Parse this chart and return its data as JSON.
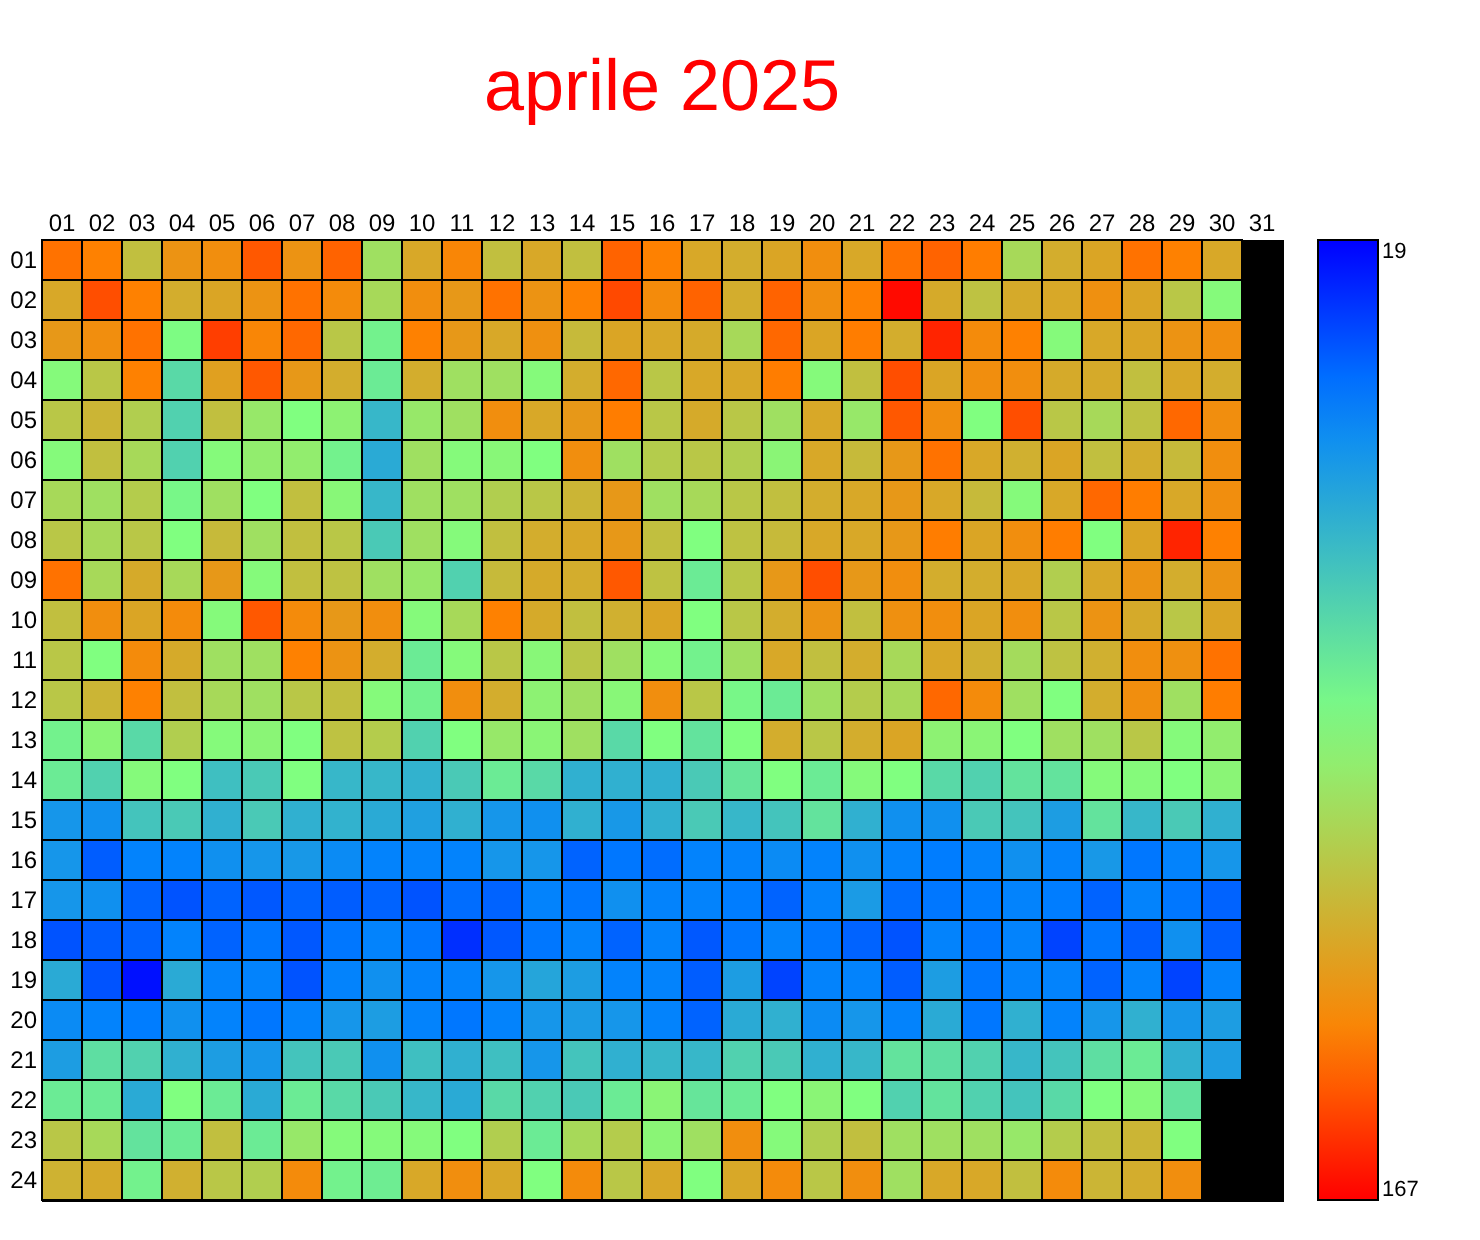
{
  "chart_data": {
    "type": "heatmap",
    "title": "aprile 2025",
    "categories": [
      "01",
      "02",
      "03",
      "04",
      "05",
      "06",
      "07",
      "08",
      "09",
      "10",
      "11",
      "12",
      "13",
      "14",
      "15",
      "16",
      "17",
      "18",
      "19",
      "20",
      "21",
      "22",
      "23",
      "24",
      "25",
      "26",
      "27",
      "28",
      "29",
      "30",
      "31"
    ],
    "y_categories": [
      "01",
      "02",
      "03",
      "04",
      "05",
      "06",
      "07",
      "08",
      "09",
      "10",
      "11",
      "12",
      "13",
      "14",
      "15",
      "16",
      "17",
      "18",
      "19",
      "20",
      "21",
      "22",
      "23",
      "24"
    ],
    "cells": [
      [
        145,
        142,
        118,
        135,
        137,
        150,
        135,
        148,
        105,
        127,
        140,
        118,
        127,
        118,
        148,
        142,
        127,
        125,
        128,
        137,
        127,
        145,
        148,
        143,
        108,
        125,
        128,
        145,
        142,
        127,
        null
      ],
      [
        127,
        152,
        142,
        125,
        128,
        135,
        145,
        138,
        108,
        137,
        133,
        145,
        135,
        142,
        153,
        138,
        148,
        125,
        148,
        137,
        142,
        165,
        126,
        117,
        126,
        127,
        136,
        128,
        115,
        95,
        null
      ],
      [
        133,
        137,
        145,
        92,
        155,
        140,
        147,
        115,
        88,
        142,
        133,
        127,
        136,
        120,
        128,
        127,
        126,
        108,
        147,
        128,
        143,
        125,
        160,
        138,
        142,
        95,
        127,
        128,
        135,
        137,
        null
      ],
      [
        95,
        115,
        142,
        78,
        130,
        150,
        133,
        125,
        85,
        125,
        105,
        105,
        95,
        125,
        147,
        115,
        127,
        127,
        143,
        95,
        118,
        152,
        128,
        137,
        137,
        126,
        126,
        118,
        127,
        125,
        null
      ],
      [
        115,
        122,
        112,
        75,
        118,
        102,
        93,
        98,
        65,
        102,
        105,
        137,
        127,
        133,
        143,
        115,
        126,
        115,
        105,
        127,
        102,
        150,
        137,
        93,
        152,
        115,
        108,
        117,
        147,
        137,
        null
      ],
      [
        95,
        118,
        108,
        75,
        95,
        100,
        100,
        88,
        60,
        105,
        95,
        96,
        93,
        137,
        105,
        113,
        115,
        112,
        97,
        127,
        120,
        133,
        145,
        127,
        124,
        128,
        118,
        125,
        120,
        137,
        null
      ],
      [
        108,
        105,
        113,
        90,
        105,
        93,
        118,
        96,
        65,
        105,
        105,
        112,
        115,
        122,
        133,
        105,
        108,
        115,
        118,
        125,
        127,
        133,
        127,
        120,
        95,
        127,
        147,
        143,
        127,
        137,
        null
      ],
      [
        115,
        108,
        115,
        93,
        120,
        105,
        118,
        115,
        72,
        105,
        95,
        118,
        125,
        127,
        133,
        118,
        93,
        117,
        120,
        127,
        127,
        133,
        143,
        128,
        137,
        143,
        93,
        128,
        160,
        142,
        null
      ],
      [
        145,
        108,
        126,
        108,
        133,
        95,
        118,
        117,
        105,
        102,
        75,
        120,
        126,
        125,
        150,
        117,
        85,
        115,
        133,
        152,
        133,
        137,
        125,
        125,
        127,
        112,
        127,
        135,
        125,
        135,
        null
      ],
      [
        118,
        137,
        128,
        138,
        95,
        150,
        138,
        133,
        137,
        95,
        108,
        142,
        126,
        118,
        124,
        128,
        93,
        115,
        125,
        135,
        118,
        136,
        137,
        128,
        137,
        115,
        135,
        126,
        115,
        128,
        null
      ],
      [
        115,
        93,
        138,
        126,
        105,
        105,
        142,
        135,
        125,
        85,
        95,
        115,
        96,
        115,
        105,
        95,
        88,
        105,
        127,
        118,
        125,
        108,
        127,
        124,
        107,
        117,
        124,
        137,
        136,
        145,
        null
      ],
      [
        115,
        122,
        142,
        118,
        108,
        105,
        115,
        118,
        95,
        88,
        137,
        125,
        98,
        105,
        96,
        137,
        115,
        90,
        85,
        105,
        113,
        108,
        147,
        138,
        105,
        93,
        125,
        137,
        105,
        143,
        null
      ],
      [
        88,
        97,
        78,
        112,
        95,
        97,
        93,
        117,
        113,
        75,
        93,
        102,
        97,
        105,
        78,
        93,
        82,
        93,
        125,
        115,
        125,
        128,
        98,
        97,
        93,
        105,
        105,
        115,
        95,
        100,
        null
      ],
      [
        85,
        75,
        95,
        93,
        68,
        72,
        93,
        65,
        65,
        63,
        72,
        85,
        78,
        62,
        62,
        62,
        72,
        83,
        93,
        85,
        95,
        93,
        78,
        75,
        82,
        82,
        95,
        95,
        93,
        97,
        null
      ],
      [
        52,
        50,
        70,
        72,
        62,
        72,
        62,
        63,
        60,
        56,
        62,
        52,
        50,
        62,
        53,
        62,
        72,
        65,
        70,
        82,
        62,
        50,
        50,
        72,
        70,
        55,
        82,
        65,
        72,
        62,
        null
      ],
      [
        52,
        37,
        45,
        45,
        50,
        52,
        53,
        48,
        45,
        45,
        45,
        52,
        52,
        38,
        42,
        40,
        45,
        45,
        48,
        45,
        50,
        45,
        43,
        45,
        50,
        45,
        53,
        42,
        45,
        52,
        null
      ],
      [
        52,
        50,
        38,
        35,
        38,
        36,
        38,
        37,
        38,
        35,
        40,
        38,
        45,
        42,
        50,
        45,
        45,
        43,
        38,
        45,
        54,
        40,
        42,
        43,
        45,
        43,
        38,
        45,
        42,
        38,
        null
      ],
      [
        35,
        37,
        38,
        45,
        38,
        42,
        36,
        42,
        45,
        42,
        28,
        36,
        42,
        45,
        38,
        45,
        36,
        42,
        45,
        42,
        38,
        35,
        45,
        42,
        45,
        32,
        42,
        37,
        50,
        37,
        null
      ],
      [
        60,
        35,
        22,
        60,
        45,
        45,
        35,
        45,
        50,
        45,
        45,
        52,
        58,
        55,
        45,
        45,
        37,
        55,
        32,
        45,
        45,
        37,
        55,
        42,
        45,
        45,
        38,
        45,
        32,
        45,
        null
      ],
      [
        48,
        45,
        43,
        50,
        45,
        42,
        45,
        52,
        55,
        45,
        42,
        45,
        52,
        54,
        52,
        45,
        38,
        60,
        62,
        48,
        52,
        45,
        60,
        42,
        62,
        45,
        52,
        62,
        52,
        55,
        null
      ],
      [
        55,
        80,
        75,
        62,
        55,
        52,
        70,
        72,
        50,
        68,
        62,
        68,
        52,
        70,
        62,
        65,
        65,
        75,
        72,
        62,
        65,
        82,
        80,
        75,
        65,
        70,
        80,
        85,
        62,
        55,
        null
      ],
      [
        85,
        85,
        60,
        93,
        85,
        60,
        85,
        78,
        72,
        65,
        60,
        78,
        75,
        72,
        85,
        97,
        83,
        85,
        93,
        97,
        93,
        75,
        82,
        75,
        70,
        78,
        93,
        95,
        82,
        null,
        null
      ],
      [
        115,
        108,
        82,
        85,
        118,
        85,
        102,
        95,
        95,
        95,
        93,
        112,
        85,
        108,
        113,
        97,
        105,
        137,
        95,
        112,
        118,
        105,
        105,
        105,
        102,
        113,
        118,
        122,
        93,
        null,
        null
      ],
      [
        123,
        126,
        88,
        124,
        115,
        112,
        138,
        88,
        86,
        127,
        137,
        127,
        93,
        138,
        115,
        127,
        93,
        127,
        138,
        115,
        137,
        105,
        127,
        127,
        118,
        138,
        122,
        125,
        137,
        null,
        null
      ]
    ],
    "clim": [
      19,
      167
    ],
    "cticks": [
      19,
      167
    ]
  }
}
